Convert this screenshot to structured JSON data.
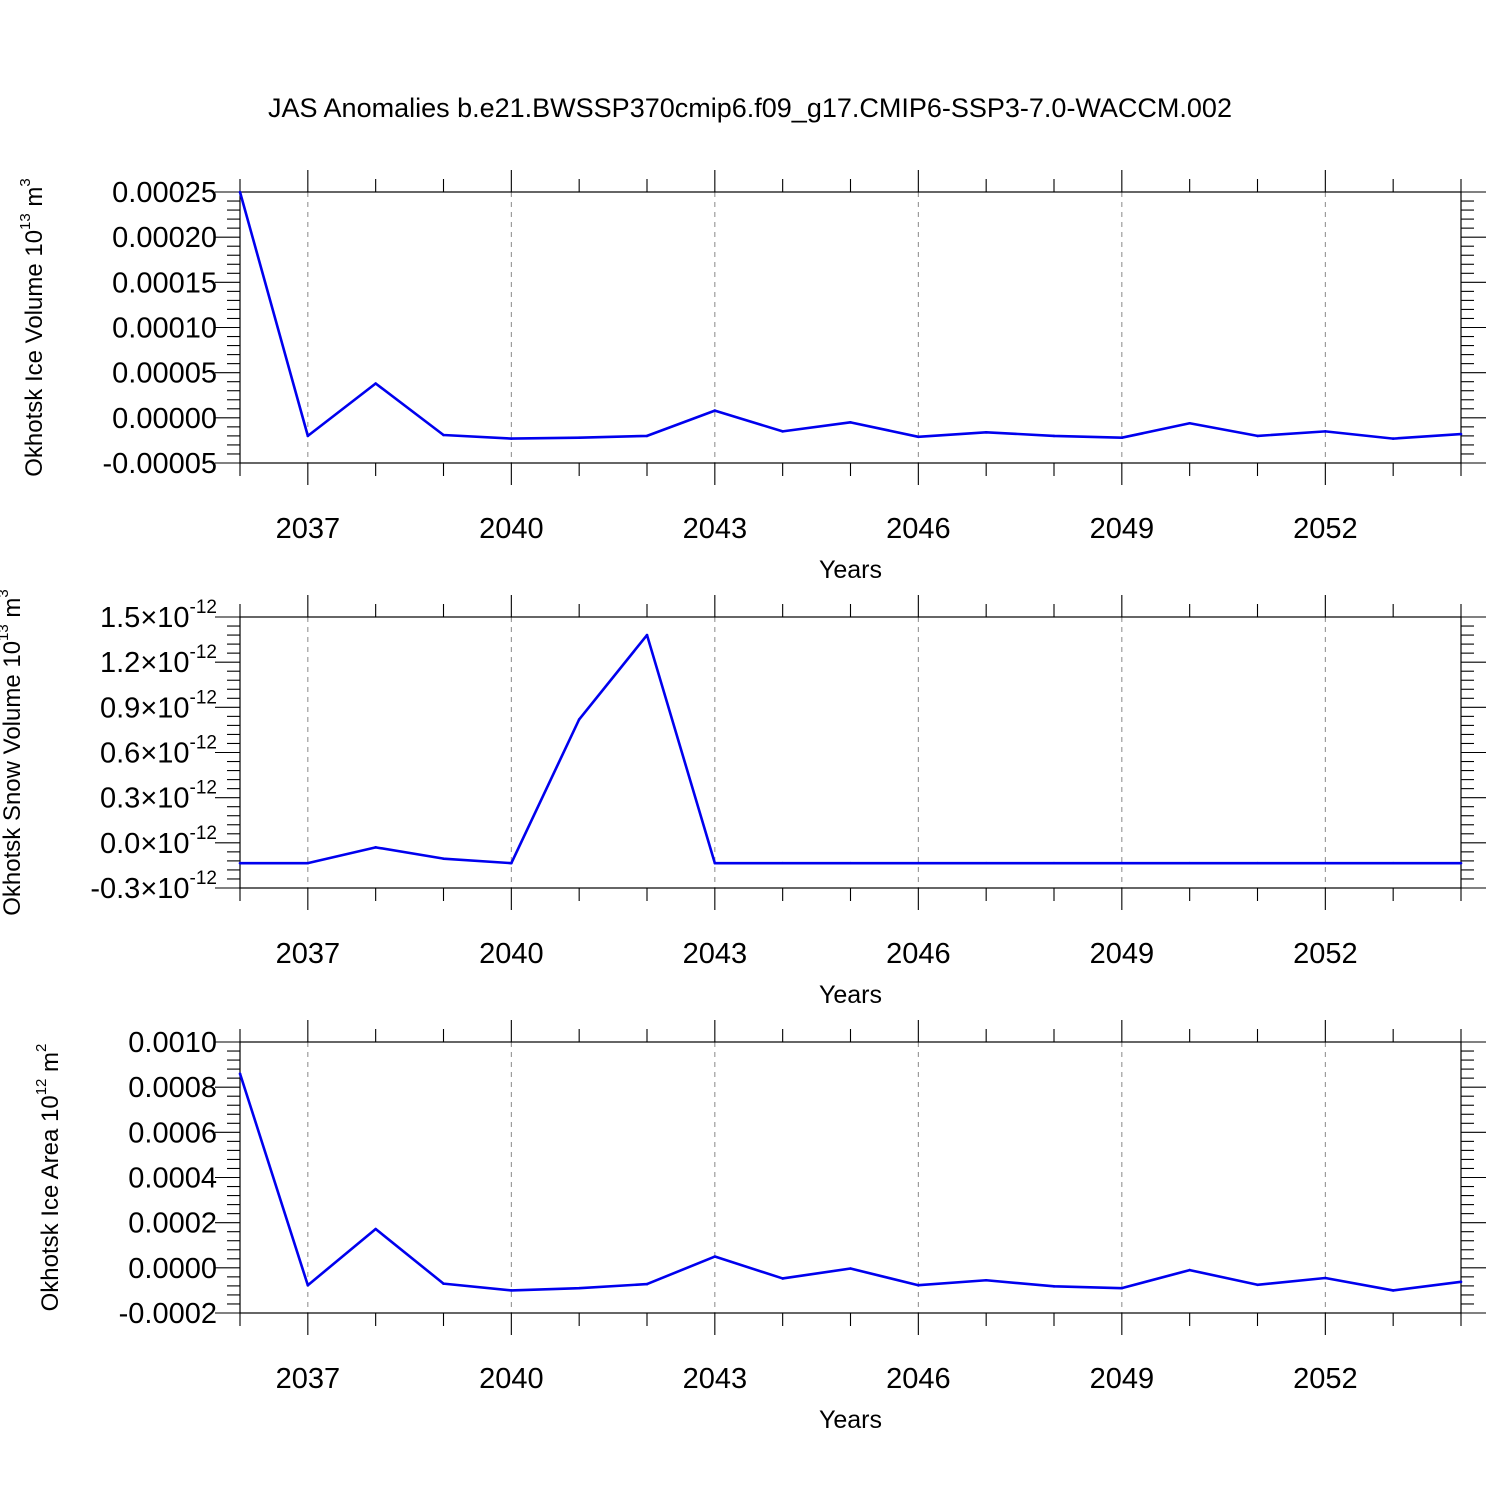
{
  "title": "JAS Anomalies b.e21.BWSSP370cmip6.f09_g17.CMIP6-SSP3-7.0-WACCM.002",
  "colors": {
    "series": "#0000ee",
    "axis": "#000000",
    "grid": "#888888"
  },
  "chart_data": [
    {
      "type": "line",
      "xlabel": "Years",
      "ylabel": {
        "text": "Okhotsk Ice Volume 10",
        "sup": "13",
        "unit": " m",
        "unit_sup": "3"
      },
      "xlim": [
        2036,
        2054
      ],
      "ylim": [
        -5e-05,
        0.00025
      ],
      "x_ticks": [
        "2037",
        "2040",
        "2043",
        "2046",
        "2049",
        "2052"
      ],
      "y_ticks": [
        {
          "value": 0.00025,
          "label": "0.00025"
        },
        {
          "value": 0.0002,
          "label": "0.00020"
        },
        {
          "value": 0.00015,
          "label": "0.00015"
        },
        {
          "value": 0.0001,
          "label": "0.00010"
        },
        {
          "value": 5e-05,
          "label": "0.00005"
        },
        {
          "value": 0.0,
          "label": "0.00000"
        },
        {
          "value": -5e-05,
          "label": "-0.00005"
        }
      ],
      "grid": "vertical dashed",
      "x": [
        2036,
        2037,
        2038,
        2039,
        2040,
        2041,
        2042,
        2043,
        2044,
        2045,
        2046,
        2047,
        2048,
        2049,
        2050,
        2051,
        2052,
        2053,
        2054
      ],
      "series": [
        {
          "values": [
            0.00025,
            -2e-05,
            3.8e-05,
            -1.9e-05,
            -2.3e-05,
            -2.2e-05,
            -2e-05,
            8e-06,
            -1.5e-05,
            -5e-06,
            -2.1e-05,
            -1.6e-05,
            -2e-05,
            -2.2e-05,
            -6e-06,
            -2e-05,
            -1.5e-05,
            -2.3e-05,
            -1.8e-05
          ]
        }
      ]
    },
    {
      "type": "line",
      "xlabel": "Years",
      "ylabel": {
        "text": "Okhotsk Snow Volume 10",
        "sup": "13",
        "unit": " m",
        "unit_sup": "3"
      },
      "xlim": [
        2036,
        2054
      ],
      "ylim": [
        -3e-13,
        1.5e-12
      ],
      "x_ticks": [
        "2037",
        "2040",
        "2043",
        "2046",
        "2049",
        "2052"
      ],
      "y_ticks": [
        {
          "value": 1.5e-12,
          "mant": "1.5",
          "times": "×10",
          "exp": "-12"
        },
        {
          "value": 1.2e-12,
          "mant": "1.2",
          "times": "×10",
          "exp": "-12"
        },
        {
          "value": 9e-13,
          "mant": "0.9",
          "times": "×10",
          "exp": "-12"
        },
        {
          "value": 6e-13,
          "mant": "0.6",
          "times": "×10",
          "exp": "-12"
        },
        {
          "value": 3e-13,
          "mant": "0.3",
          "times": "×10",
          "exp": "-12"
        },
        {
          "value": 0.0,
          "mant": "0.0",
          "times": "×10",
          "exp": "-12"
        },
        {
          "value": -3e-13,
          "mant": "-0.3",
          "times": "×10",
          "exp": "-12"
        }
      ],
      "grid": "vertical dashed",
      "x": [
        2036,
        2037,
        2038,
        2039,
        2040,
        2041,
        2042,
        2043,
        2044,
        2045,
        2046,
        2047,
        2048,
        2049,
        2050,
        2051,
        2052,
        2053,
        2054
      ],
      "series": [
        {
          "values": [
            -1.35e-13,
            -1.35e-13,
            -3e-14,
            -1.05e-13,
            -1.35e-13,
            8.2e-13,
            1.38e-12,
            -1.35e-13,
            -1.35e-13,
            -1.35e-13,
            -1.35e-13,
            -1.35e-13,
            -1.35e-13,
            -1.35e-13,
            -1.35e-13,
            -1.35e-13,
            -1.35e-13,
            -1.35e-13,
            -1.35e-13
          ]
        }
      ]
    },
    {
      "type": "line",
      "xlabel": "Years",
      "ylabel": {
        "text": "Okhotsk Ice Area 10",
        "sup": "12",
        "unit": " m",
        "unit_sup": "2"
      },
      "xlim": [
        2036,
        2054
      ],
      "ylim": [
        -0.0002,
        0.001
      ],
      "x_ticks": [
        "2037",
        "2040",
        "2043",
        "2046",
        "2049",
        "2052"
      ],
      "y_ticks": [
        {
          "value": 0.001,
          "label": "0.0010"
        },
        {
          "value": 0.0008,
          "label": "0.0008"
        },
        {
          "value": 0.0006,
          "label": "0.0006"
        },
        {
          "value": 0.0004,
          "label": "0.0004"
        },
        {
          "value": 0.0002,
          "label": "0.0002"
        },
        {
          "value": 0.0,
          "label": "0.0000"
        },
        {
          "value": -0.0002,
          "label": "-0.0002"
        }
      ],
      "grid": "vertical dashed",
      "x": [
        2036,
        2037,
        2038,
        2039,
        2040,
        2041,
        2042,
        2043,
        2044,
        2045,
        2046,
        2047,
        2048,
        2049,
        2050,
        2051,
        2052,
        2053,
        2054
      ],
      "series": [
        {
          "values": [
            0.00086,
            -7.7e-05,
            0.000172,
            -7e-05,
            -0.0001,
            -9e-05,
            -7.2e-05,
            5e-05,
            -4.7e-05,
            -3e-06,
            -7.7e-05,
            -5.5e-05,
            -8.2e-05,
            -9e-05,
            -1e-05,
            -7.5e-05,
            -4.5e-05,
            -0.0001,
            -6.2e-05
          ]
        }
      ]
    }
  ]
}
